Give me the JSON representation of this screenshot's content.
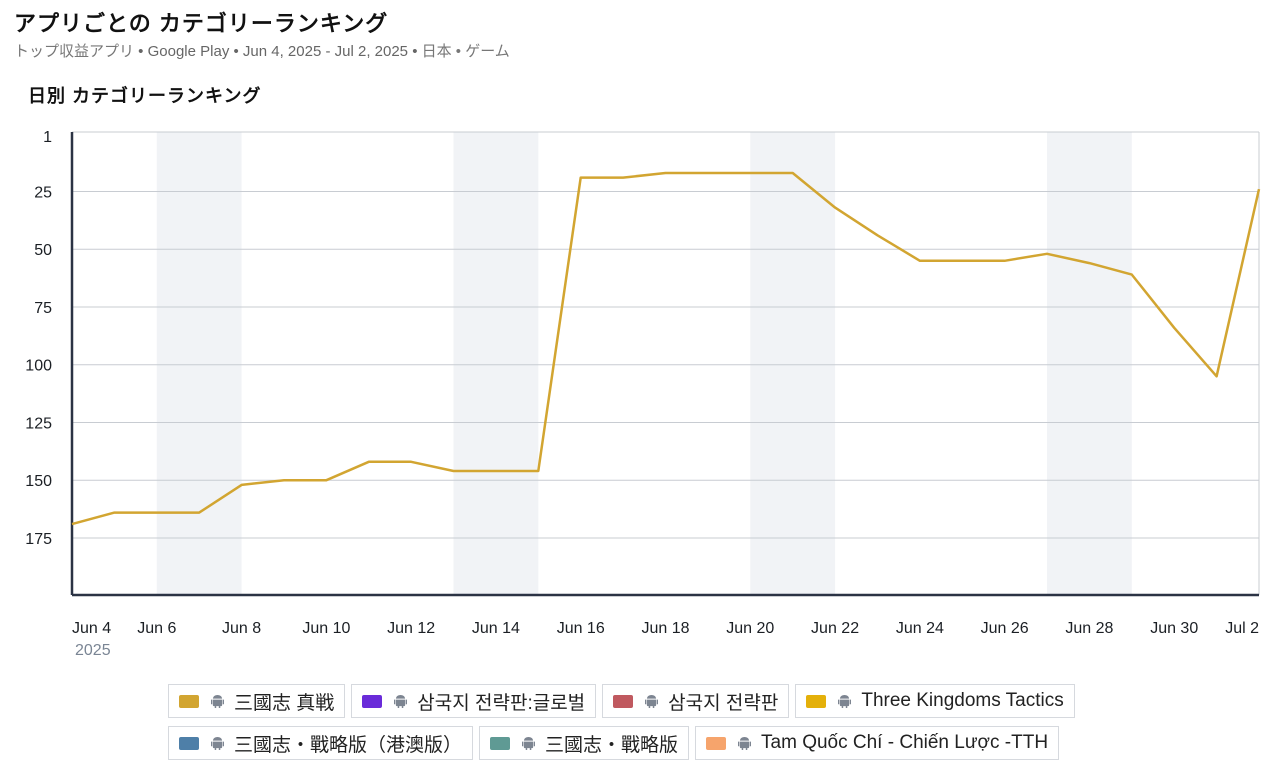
{
  "header": {
    "title": "アプリごとの カテゴリーランキング",
    "subtitle_part1": "トップ収益アプリ",
    "subtitle_part2": " • Google Play • Jun 4, 2025 - Jul 2, 2025 • ",
    "subtitle_part3": "日本 • ゲーム"
  },
  "chart_title": "日別 カテゴリーランキング",
  "colors": {
    "line": "#d2a531",
    "weekend_band": "#f1f3f6",
    "grid": "#c8ccd2",
    "axis": "#2b3344"
  },
  "chart_data": {
    "type": "line",
    "y_reversed": true,
    "ylim": [
      1,
      200
    ],
    "y_ticks": [
      1,
      25,
      50,
      75,
      100,
      125,
      150,
      175
    ],
    "x_start": "Jun 4",
    "x_end": "Jul 2",
    "x_ticks": [
      "Jun 4",
      "Jun 6",
      "Jun 8",
      "Jun 10",
      "Jun 12",
      "Jun 14",
      "Jun 16",
      "Jun 18",
      "Jun 20",
      "Jun 22",
      "Jun 24",
      "Jun 26",
      "Jun 28",
      "Jun 30",
      "Jul 2"
    ],
    "x_sub_label": "2025",
    "weekend_bands": [
      [
        "Jun 6",
        "Jun 8"
      ],
      [
        "Jun 13",
        "Jun 15"
      ],
      [
        "Jun 20",
        "Jun 22"
      ],
      [
        "Jun 27",
        "Jun 29"
      ]
    ],
    "series": [
      {
        "name": "三國志 真戦",
        "color": "#d2a531",
        "x": [
          "Jun 4",
          "Jun 5",
          "Jun 6",
          "Jun 7",
          "Jun 8",
          "Jun 9",
          "Jun 10",
          "Jun 11",
          "Jun 12",
          "Jun 13",
          "Jun 14",
          "Jun 15",
          "Jun 16",
          "Jun 17",
          "Jun 18",
          "Jun 19",
          "Jun 20",
          "Jun 21",
          "Jun 22",
          "Jun 23",
          "Jun 24",
          "Jun 25",
          "Jun 26",
          "Jun 27",
          "Jun 28",
          "Jun 29",
          "Jun 30",
          "Jul 1",
          "Jul 2"
        ],
        "values": [
          169,
          164,
          164,
          164,
          152,
          150,
          150,
          142,
          142,
          146,
          146,
          146,
          19,
          19,
          17,
          17,
          17,
          17,
          32,
          44,
          55,
          55,
          55,
          52,
          56,
          61,
          84,
          105,
          24
        ]
      }
    ]
  },
  "legend": [
    {
      "label": "三國志 真戦",
      "color": "#d2a531",
      "icon": "android-icon"
    },
    {
      "label": "삼국지 전략판:글로벌",
      "color": "#6a2bd9",
      "icon": "android-icon"
    },
    {
      "label": "삼국지 전략판",
      "color": "#c0595f",
      "icon": "android-icon"
    },
    {
      "label": "Three Kingdoms Tactics",
      "color": "#e4b00a",
      "icon": "android-icon"
    },
    {
      "label": "三國志・戰略版（港澳版）",
      "color": "#4e7fa8",
      "icon": "android-icon"
    },
    {
      "label": "三國志・戰略版",
      "color": "#5f9a94",
      "icon": "android-icon"
    },
    {
      "label": "Tam Quốc Chí - Chiến Lược -TTH",
      "color": "#f6a46c",
      "icon": "android-icon"
    }
  ]
}
